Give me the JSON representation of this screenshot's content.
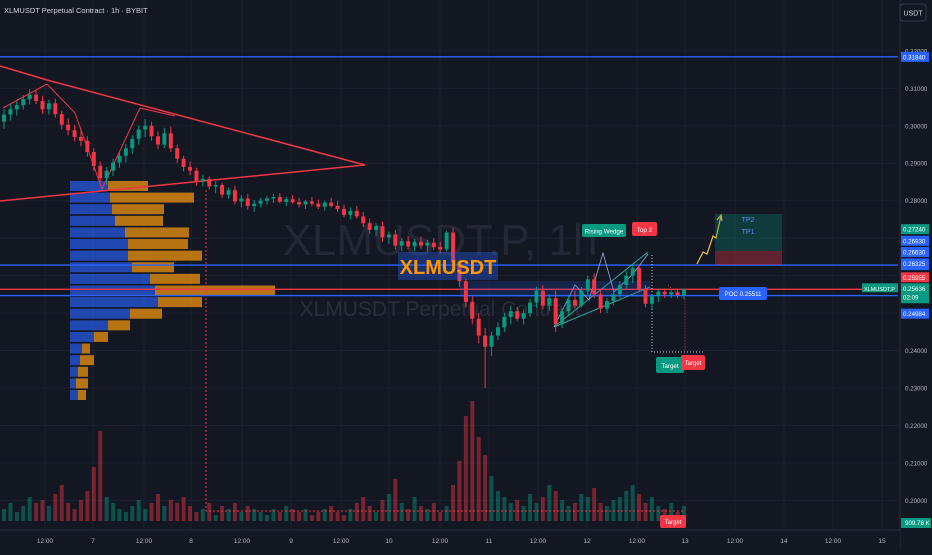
{
  "header": {
    "title": "XLMUSDT Perpetual Contract · 1h · BYBIT",
    "currency_button": "USDT"
  },
  "watermark": {
    "line1": "XLMUSDT.P, 1h",
    "line2": "XLMUSDT Perpetual Contract"
  },
  "chart_data": {
    "type": "candlestick",
    "symbol": "XLMUSDT.P",
    "timeframe": "1h",
    "exchange": "BYBIT",
    "ylim": [
      0.1945,
      0.3245
    ],
    "y_ticks": [
      0.32,
      0.31,
      0.3,
      0.29,
      0.28,
      0.27,
      0.26,
      0.25,
      0.24,
      0.23,
      0.22,
      0.21,
      0.2
    ],
    "y_tick_labels": [
      "0.32000",
      "0.31000",
      "0.30000",
      "0.29000",
      "0.28000",
      "0.27000",
      "0.26000",
      "0.25000",
      "0.24000",
      "0.23000",
      "0.22000",
      "0.21000",
      "0.20000"
    ],
    "x_tick_labels": [
      "12:00",
      "7",
      "12:00",
      "8",
      "12:00",
      "9",
      "12:00",
      "10",
      "12:00",
      "11",
      "12:00",
      "12",
      "12:00",
      "13",
      "12:00",
      "14",
      "12:00",
      "15"
    ],
    "candles": [
      [
        0.3011,
        0.3045,
        0.2992,
        0.303
      ],
      [
        0.303,
        0.3058,
        0.3014,
        0.3044
      ],
      [
        0.3044,
        0.3066,
        0.3027,
        0.3055
      ],
      [
        0.3055,
        0.3082,
        0.3043,
        0.3071
      ],
      [
        0.3071,
        0.3098,
        0.3057,
        0.3083
      ],
      [
        0.3083,
        0.3095,
        0.3058,
        0.3066
      ],
      [
        0.3066,
        0.308,
        0.3032,
        0.3044
      ],
      [
        0.3044,
        0.307,
        0.303,
        0.306
      ],
      [
        0.306,
        0.3072,
        0.3022,
        0.3031
      ],
      [
        0.3031,
        0.304,
        0.299,
        0.3003
      ],
      [
        0.3003,
        0.302,
        0.2975,
        0.2988
      ],
      [
        0.2988,
        0.3002,
        0.2958,
        0.297
      ],
      [
        0.297,
        0.2991,
        0.2945,
        0.296
      ],
      [
        0.296,
        0.2972,
        0.2918,
        0.293
      ],
      [
        0.293,
        0.294,
        0.288,
        0.2893
      ],
      [
        0.2893,
        0.2905,
        0.2848,
        0.286
      ],
      [
        0.286,
        0.289,
        0.2843,
        0.288
      ],
      [
        0.288,
        0.2912,
        0.2866,
        0.2902
      ],
      [
        0.2902,
        0.2931,
        0.2888,
        0.292
      ],
      [
        0.292,
        0.2952,
        0.2902,
        0.294
      ],
      [
        0.294,
        0.2975,
        0.2925,
        0.2965
      ],
      [
        0.2965,
        0.3001,
        0.295,
        0.299
      ],
      [
        0.299,
        0.3018,
        0.297,
        0.3
      ],
      [
        0.3,
        0.3011,
        0.296,
        0.2972
      ],
      [
        0.2972,
        0.2985,
        0.2938,
        0.295
      ],
      [
        0.295,
        0.2995,
        0.294,
        0.298
      ],
      [
        0.298,
        0.2998,
        0.293,
        0.294
      ],
      [
        0.294,
        0.295,
        0.29,
        0.2912
      ],
      [
        0.2912,
        0.292,
        0.2878,
        0.289
      ],
      [
        0.289,
        0.2905,
        0.2868,
        0.288
      ],
      [
        0.288,
        0.2888,
        0.284,
        0.2852
      ],
      [
        0.2852,
        0.287,
        0.2838,
        0.2858
      ],
      [
        0.2858,
        0.2865,
        0.283,
        0.2838
      ],
      [
        0.2838,
        0.2852,
        0.282,
        0.2842
      ],
      [
        0.2842,
        0.2848,
        0.2808,
        0.2816
      ],
      [
        0.2816,
        0.2835,
        0.2805,
        0.2828
      ],
      [
        0.2828,
        0.284,
        0.279,
        0.2798
      ],
      [
        0.2798,
        0.2815,
        0.2782,
        0.2806
      ],
      [
        0.2806,
        0.2818,
        0.2776,
        0.2786
      ],
      [
        0.2786,
        0.2802,
        0.277,
        0.2792
      ],
      [
        0.2792,
        0.2808,
        0.2782,
        0.28
      ],
      [
        0.28,
        0.2812,
        0.279,
        0.2806
      ],
      [
        0.2806,
        0.2818,
        0.2794,
        0.281
      ],
      [
        0.281,
        0.282,
        0.2793,
        0.2797
      ],
      [
        0.2797,
        0.281,
        0.2786,
        0.2804
      ],
      [
        0.2804,
        0.2815,
        0.2792,
        0.2796
      ],
      [
        0.2796,
        0.2808,
        0.2782,
        0.279
      ],
      [
        0.279,
        0.2802,
        0.2778,
        0.2798
      ],
      [
        0.2798,
        0.281,
        0.2786,
        0.2792
      ],
      [
        0.2792,
        0.2803,
        0.2778,
        0.2784
      ],
      [
        0.2784,
        0.28,
        0.2774,
        0.2795
      ],
      [
        0.2795,
        0.2808,
        0.2782,
        0.2786
      ],
      [
        0.2786,
        0.28,
        0.277,
        0.2778
      ],
      [
        0.2778,
        0.279,
        0.2756,
        0.2762
      ],
      [
        0.2762,
        0.2782,
        0.275,
        0.2773
      ],
      [
        0.2773,
        0.2786,
        0.2752,
        0.2758
      ],
      [
        0.2758,
        0.277,
        0.273,
        0.274
      ],
      [
        0.274,
        0.2752,
        0.2712,
        0.2722
      ],
      [
        0.2722,
        0.274,
        0.2705,
        0.2732
      ],
      [
        0.2732,
        0.2745,
        0.269,
        0.2702
      ],
      [
        0.2702,
        0.2718,
        0.2685,
        0.271
      ],
      [
        0.271,
        0.2722,
        0.267,
        0.268
      ],
      [
        0.268,
        0.27,
        0.2665,
        0.2692
      ],
      [
        0.2692,
        0.2706,
        0.267,
        0.2678
      ],
      [
        0.2678,
        0.2698,
        0.2666,
        0.269
      ],
      [
        0.269,
        0.2704,
        0.2672,
        0.268
      ],
      [
        0.268,
        0.2696,
        0.2664,
        0.2688
      ],
      [
        0.2688,
        0.27,
        0.2668,
        0.2676
      ],
      [
        0.2676,
        0.269,
        0.266,
        0.267
      ],
      [
        0.267,
        0.272,
        0.2665,
        0.2715
      ],
      [
        0.2715,
        0.2728,
        0.262,
        0.2635
      ],
      [
        0.2635,
        0.264,
        0.257,
        0.2585
      ],
      [
        0.2585,
        0.2592,
        0.2515,
        0.253
      ],
      [
        0.253,
        0.2545,
        0.247,
        0.2485
      ],
      [
        0.2485,
        0.25,
        0.242,
        0.244
      ],
      [
        0.244,
        0.246,
        0.23,
        0.241
      ],
      [
        0.241,
        0.245,
        0.2385,
        0.244
      ],
      [
        0.244,
        0.2475,
        0.2428,
        0.2462
      ],
      [
        0.2462,
        0.25,
        0.245,
        0.249
      ],
      [
        0.249,
        0.252,
        0.247,
        0.2505
      ],
      [
        0.2505,
        0.2516,
        0.2478,
        0.2485
      ],
      [
        0.2485,
        0.251,
        0.247,
        0.25
      ],
      [
        0.25,
        0.2538,
        0.249,
        0.2528
      ],
      [
        0.2528,
        0.257,
        0.2515,
        0.256
      ],
      [
        0.256,
        0.2575,
        0.251,
        0.252
      ],
      [
        0.252,
        0.255,
        0.2505,
        0.254
      ],
      [
        0.254,
        0.256,
        0.245,
        0.247
      ],
      [
        0.247,
        0.2512,
        0.246,
        0.2505
      ],
      [
        0.2505,
        0.2545,
        0.2495,
        0.2535
      ],
      [
        0.2535,
        0.256,
        0.2512,
        0.252
      ],
      [
        0.252,
        0.257,
        0.2515,
        0.256
      ],
      [
        0.256,
        0.26,
        0.2545,
        0.259
      ],
      [
        0.259,
        0.2605,
        0.254,
        0.255
      ],
      [
        0.255,
        0.2565,
        0.25,
        0.2512
      ],
      [
        0.2512,
        0.254,
        0.25,
        0.2532
      ],
      [
        0.2532,
        0.2562,
        0.252,
        0.255
      ],
      [
        0.255,
        0.2585,
        0.254,
        0.2575
      ],
      [
        0.2575,
        0.2612,
        0.2565,
        0.26
      ],
      [
        0.26,
        0.263,
        0.258,
        0.262
      ],
      [
        0.262,
        0.263,
        0.2555,
        0.2565
      ],
      [
        0.2565,
        0.2575,
        0.2515,
        0.2525
      ],
      [
        0.2525,
        0.255,
        0.251,
        0.2545
      ],
      [
        0.2545,
        0.2565,
        0.253,
        0.2557
      ],
      [
        0.2557,
        0.2566,
        0.254,
        0.255
      ],
      [
        0.255,
        0.2563,
        0.254,
        0.2556
      ],
      [
        0.2556,
        0.2565,
        0.254,
        0.2548
      ],
      [
        0.2548,
        0.256,
        0.2538,
        0.2564
      ]
    ],
    "volumes": [
      4,
      6,
      3,
      5,
      8,
      6,
      7,
      5,
      9,
      12,
      6,
      4,
      7,
      10,
      18,
      30,
      8,
      6,
      4,
      3,
      5,
      7,
      4,
      6,
      9,
      5,
      7,
      6,
      8,
      5,
      3,
      4,
      6,
      2,
      5,
      4,
      6,
      3,
      5,
      4,
      3,
      2,
      4,
      3,
      5,
      4,
      3,
      4,
      2,
      3,
      4,
      5,
      3,
      2,
      4,
      6,
      8,
      5,
      3,
      7,
      9,
      14,
      6,
      4,
      8,
      5,
      4,
      6,
      3,
      5,
      12,
      20,
      35,
      40,
      28,
      22,
      15,
      10,
      8,
      6,
      7,
      5,
      9,
      6,
      8,
      12,
      10,
      7,
      5,
      6,
      9,
      8,
      11,
      6,
      5,
      7,
      8,
      10,
      12,
      9,
      6,
      8,
      5,
      4,
      6,
      3,
      5
    ],
    "price_levels": [
      {
        "price": 0.3184,
        "label": "0.31840",
        "color": "#2962ff"
      },
      {
        "price": 0.26282,
        "label": "0.26282",
        "color": "#2962ff"
      },
      {
        "price": 0.25468,
        "label": "0.25468",
        "color": "#2962ff"
      }
    ],
    "right_scale_labels": [
      {
        "price": 0.2724,
        "label": "0.27240",
        "color": "#089981"
      },
      {
        "price": 0.2693,
        "label": "0.26930",
        "color": "#2962ff"
      },
      {
        "price": 0.2663,
        "label": "0.26630",
        "color": "#2962ff"
      },
      {
        "price": 0.26325,
        "label": "0.26325",
        "color": "#2962ff"
      },
      {
        "price": 0.25955,
        "label": "0.25955",
        "color": "#f23645"
      },
      {
        "price": 0.24984,
        "label": "0.24984",
        "color": "#2962ff"
      }
    ],
    "current_price": {
      "symbol": "XLMUSDT.P",
      "value": "0.25636",
      "countdown": "02:09",
      "price": 0.25636
    },
    "poc_label": "POC 0.25511",
    "annotations": {
      "center_label": "XLMUSDT",
      "rising_wedge": "Rising Wedge",
      "top2": "Top 2",
      "target1": "Target",
      "target2": "Target",
      "tp1": "TP1",
      "tp2": "TP2",
      "volume_target": "Target"
    },
    "volume_label": "909.78 K",
    "volume_profile": [
      {
        "price": 0.2838,
        "buy": 38,
        "sell": 40
      },
      {
        "price": 0.2807,
        "buy": 40,
        "sell": 84
      },
      {
        "price": 0.2776,
        "buy": 42,
        "sell": 52
      },
      {
        "price": 0.2745,
        "buy": 45,
        "sell": 48
      },
      {
        "price": 0.2714,
        "buy": 55,
        "sell": 64
      },
      {
        "price": 0.2683,
        "buy": 58,
        "sell": 60
      },
      {
        "price": 0.2652,
        "buy": 58,
        "sell": 74
      },
      {
        "price": 0.2621,
        "buy": 62,
        "sell": 42
      },
      {
        "price": 0.259,
        "buy": 80,
        "sell": 50
      },
      {
        "price": 0.2559,
        "buy": 85,
        "sell": 120
      },
      {
        "price": 0.2528,
        "buy": 88,
        "sell": 44
      },
      {
        "price": 0.2497,
        "buy": 60,
        "sell": 32
      },
      {
        "price": 0.2466,
        "buy": 38,
        "sell": 22
      },
      {
        "price": 0.2435,
        "buy": 24,
        "sell": 14
      },
      {
        "price": 0.2404,
        "buy": 12,
        "sell": 8
      },
      {
        "price": 0.2373,
        "buy": 10,
        "sell": 14
      },
      {
        "price": 0.2342,
        "buy": 8,
        "sell": 10
      },
      {
        "price": 0.2311,
        "buy": 6,
        "sell": 12
      },
      {
        "price": 0.228,
        "buy": 8,
        "sell": 8
      }
    ]
  },
  "colors": {
    "background": "#131722",
    "up": "#089981",
    "down": "#f23645",
    "level_line": "#2962ff",
    "triangle": "#f23645",
    "wedge": "#26a69a",
    "vp_buy": "#2962ff",
    "vp_sell": "#f0930f",
    "watermark": "#363a45",
    "axis_text": "#b2b5be"
  }
}
